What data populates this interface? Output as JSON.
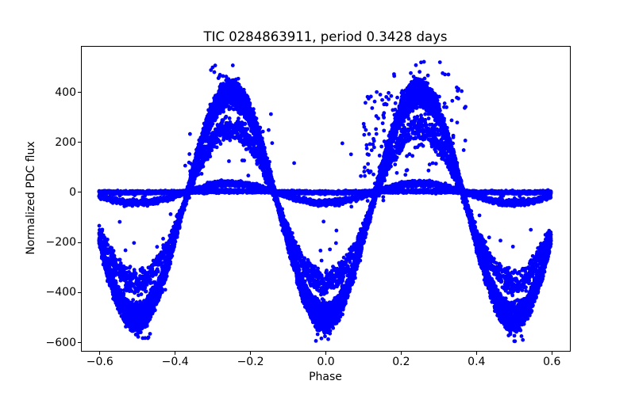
{
  "chart_data": {
    "type": "scatter",
    "title": "TIC 0284863911, period 0.3428 days",
    "xlabel": "Phase",
    "ylabel": "Normalized PDC flux",
    "xlim": [
      -0.648,
      0.648
    ],
    "ylim": [
      -633,
      582
    ],
    "x_ticks": [
      {
        "value": -0.6,
        "label": "−0.6"
      },
      {
        "value": -0.4,
        "label": "−0.4"
      },
      {
        "value": -0.2,
        "label": "−0.2"
      },
      {
        "value": 0.0,
        "label": "0.0"
      },
      {
        "value": 0.2,
        "label": "0.2"
      },
      {
        "value": 0.4,
        "label": "0.4"
      },
      {
        "value": 0.6,
        "label": "0.6"
      }
    ],
    "y_ticks": [
      {
        "value": -600,
        "label": "−600"
      },
      {
        "value": -400,
        "label": "−400"
      },
      {
        "value": -200,
        "label": "−200"
      },
      {
        "value": 0,
        "label": "0"
      },
      {
        "value": 200,
        "label": "200"
      },
      {
        "value": 400,
        "label": "400"
      }
    ],
    "marker": {
      "color": "#0000ff",
      "radius_px": 2.4
    },
    "wave": {
      "x_range": [
        -0.6,
        0.6
      ],
      "wave_period_in_phase": 0.5,
      "minima_at": [
        -0.5,
        0.0,
        0.5
      ],
      "maxima_at": [
        -0.25,
        0.25
      ],
      "min_flux_approx": -570,
      "max_flux_approx": 460
    },
    "components": [
      {
        "name": "high-amplitude-band",
        "n": 9000,
        "mean_flux": -55,
        "amp_min": 400,
        "amp_max": 500,
        "jitter": 10
      },
      {
        "name": "inner-envelope-band",
        "n": 2600,
        "mean_flux": -55,
        "amp_min": 270,
        "amp_max": 350,
        "jitter": 10
      },
      {
        "name": "low-amplitude-bump",
        "n": 2600,
        "mean_flux": -6,
        "amp_min": 30,
        "amp_max": 48,
        "jitter": 3.5
      },
      {
        "name": "flat-band",
        "n": 3800,
        "mean_flux": -1,
        "amp_min": 0,
        "amp_max": 5,
        "jitter": 2.5
      }
    ],
    "scatter_regions": [
      {
        "x": [
          0.1,
          0.38
        ],
        "y": [
          60,
          430
        ],
        "n": 95
      },
      {
        "x": [
          0.16,
          0.33
        ],
        "y": [
          140,
          400
        ],
        "n": 55
      },
      {
        "x": [
          0.1,
          0.16
        ],
        "y": [
          -50,
          350
        ],
        "n": 25
      },
      {
        "x": [
          -0.38,
          -0.13
        ],
        "y": [
          60,
          310
        ],
        "n": 22
      },
      {
        "x": [
          0.18,
          0.33
        ],
        "y": [
          455,
          520
        ],
        "n": 12
      },
      {
        "x": [
          -0.31,
          -0.19
        ],
        "y": [
          450,
          505
        ],
        "n": 9
      },
      {
        "x": [
          -0.56,
          -0.42
        ],
        "y": [
          -400,
          -120
        ],
        "n": 10
      },
      {
        "x": [
          0.42,
          0.56
        ],
        "y": [
          -400,
          -120
        ],
        "n": 10
      },
      {
        "x": [
          -0.07,
          0.07
        ],
        "y": [
          -400,
          -110
        ],
        "n": 10
      },
      {
        "x": [
          -0.54,
          -0.46
        ],
        "y": [
          -598,
          -568
        ],
        "n": 6
      },
      {
        "x": [
          0.46,
          0.54
        ],
        "y": [
          -598,
          -568
        ],
        "n": 6
      },
      {
        "x": [
          -0.03,
          0.03
        ],
        "y": [
          -598,
          -568
        ],
        "n": 5
      },
      {
        "x": [
          -0.57,
          -0.45
        ],
        "y": [
          -32,
          -12
        ],
        "n": 4
      },
      {
        "x": [
          0.45,
          0.58
        ],
        "y": [
          -32,
          -12
        ],
        "n": 5
      }
    ],
    "outlier_points": [
      [
        -0.545,
        -16
      ],
      [
        -0.478,
        -16
      ],
      [
        0.069,
        149
      ],
      [
        0.046,
        193
      ],
      [
        -0.082,
        114
      ],
      [
        0.095,
        62
      ],
      [
        -0.19,
        330
      ],
      [
        -0.165,
        240
      ],
      [
        0.41,
        -95
      ],
      [
        -0.41,
        -90
      ],
      [
        0.07,
        -60
      ],
      [
        -0.36,
        150
      ]
    ]
  }
}
